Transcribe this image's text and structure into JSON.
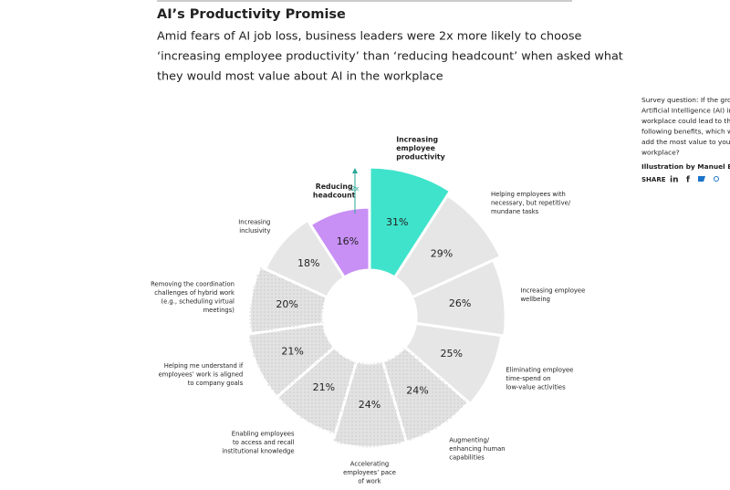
{
  "article": {
    "title": "AI’s Productivity Promise",
    "subtitle_lines": [
      "Amid fears of AI job loss, business leaders were 2x more likely to choose",
      "‘increasing employee productivity’ than ‘reducing headcount’ when asked what",
      "they would most value about AI in the workplace"
    ],
    "sidebar_lines": [
      "Survey question: If the growt",
      "Artificial Intelligence (AI) in th",
      "workplace could lead to the",
      "following benefits, which wou",
      "add the most value to your",
      "workplace?"
    ],
    "credit": "Illustration by Manuel Bort",
    "share": "SHARE"
  },
  "chart_data": {
    "type": "polar-bar",
    "categories": [
      [
        "Increasing",
        "employee",
        "productivity"
      ],
      [
        "Helping employees with",
        "necessary, but repetitive/",
        "mundane tasks"
      ],
      [
        "Increasing employee",
        "wellbeing"
      ],
      [
        "Eliminating employee",
        "time-spend on",
        "low-value activities"
      ],
      [
        "Augmenting/",
        "enhancing human",
        "capabilities"
      ],
      [
        "Accelerating",
        "employees’ pace",
        "of work"
      ],
      [
        "Enabling employees",
        "to access and recall",
        "institutional knowledge"
      ],
      [
        "Helping me understand if",
        "employees’ work is aligned",
        "to company goals"
      ],
      [
        "Removing the coordination",
        "challenges of hybrid work",
        "(e.g., scheduling virtual",
        "meetings)"
      ],
      [
        "Increasing",
        "inclusivity"
      ],
      [
        "Reducing",
        "headcount"
      ]
    ],
    "values": [
      31,
      29,
      26,
      25,
      24,
      24,
      21,
      21,
      20,
      18,
      16
    ],
    "value_labels": [
      "31%",
      "29%",
      "26%",
      "25%",
      "24%",
      "24%",
      "21%",
      "21%",
      "20%",
      "18%",
      "16%"
    ],
    "colors": [
      "#3fe3cb",
      "#e6e6e6",
      "#e6e6e6",
      "#e6e6e6",
      "#e2e2e2",
      "#e2e2e2",
      "#e2e2e2",
      "#e2e2e2",
      "#e2e2e2",
      "#e6e6e6",
      "#c88ff5"
    ],
    "annotation": "2x"
  }
}
